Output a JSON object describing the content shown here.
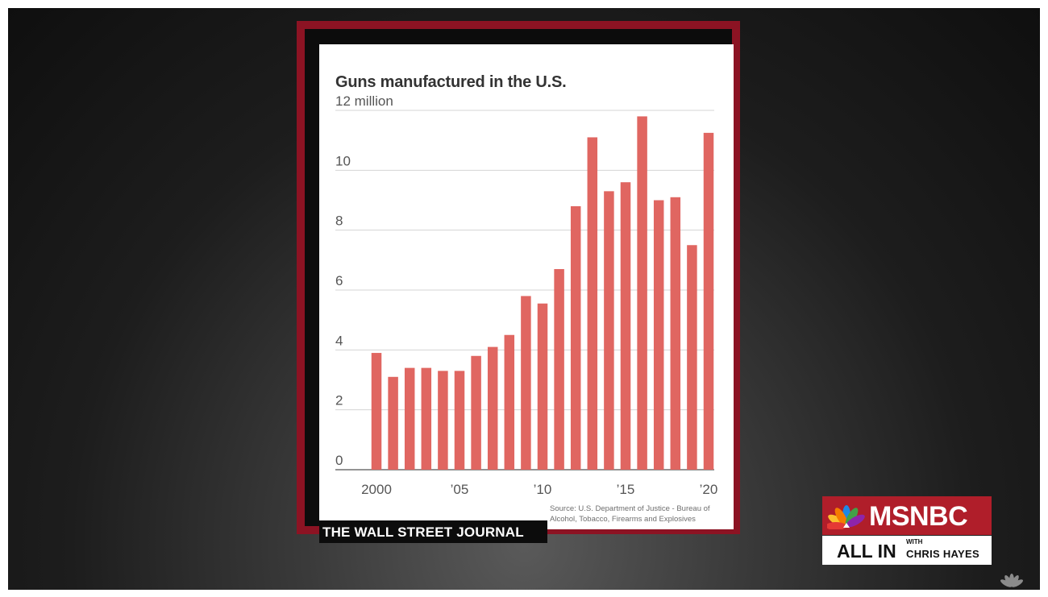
{
  "chart_data": {
    "type": "bar",
    "title": "Guns manufactured in the U.S.",
    "ylabel": "",
    "xlabel": "",
    "ylim": [
      0,
      12
    ],
    "y_ticks": [
      {
        "value": 12,
        "label": "12 million"
      },
      {
        "value": 10,
        "label": "10"
      },
      {
        "value": 8,
        "label": "8"
      },
      {
        "value": 6,
        "label": "6"
      },
      {
        "value": 4,
        "label": "4"
      },
      {
        "value": 2,
        "label": "2"
      },
      {
        "value": 0,
        "label": "0"
      }
    ],
    "x_ticks": [
      {
        "year": 2000,
        "label": "2000"
      },
      {
        "year": 2005,
        "label": "’05"
      },
      {
        "year": 2010,
        "label": "’10"
      },
      {
        "year": 2015,
        "label": "’15"
      },
      {
        "year": 2020,
        "label": "’20"
      }
    ],
    "categories": [
      2000,
      2001,
      2002,
      2003,
      2004,
      2005,
      2006,
      2007,
      2008,
      2009,
      2010,
      2011,
      2012,
      2013,
      2014,
      2015,
      2016,
      2017,
      2018,
      2019,
      2020
    ],
    "values": [
      3.9,
      3.1,
      3.4,
      3.4,
      3.3,
      3.3,
      3.8,
      4.1,
      4.5,
      5.8,
      5.55,
      6.7,
      8.8,
      11.1,
      9.3,
      9.6,
      11.8,
      9.0,
      9.1,
      7.5,
      11.25
    ],
    "bar_color": "#e06661",
    "grid": true,
    "source": "Source: U.S. Department of Justice - Bureau of Alcohol, Tobacco, Firearms and Explosives"
  },
  "branding": {
    "publication": "THE WALL STREET JOURNAL",
    "network": "MSNBC",
    "show_main": "ALL IN",
    "show_with": "WITH",
    "show_host": "CHRIS HAYES",
    "network_color": "#b01e2a"
  }
}
